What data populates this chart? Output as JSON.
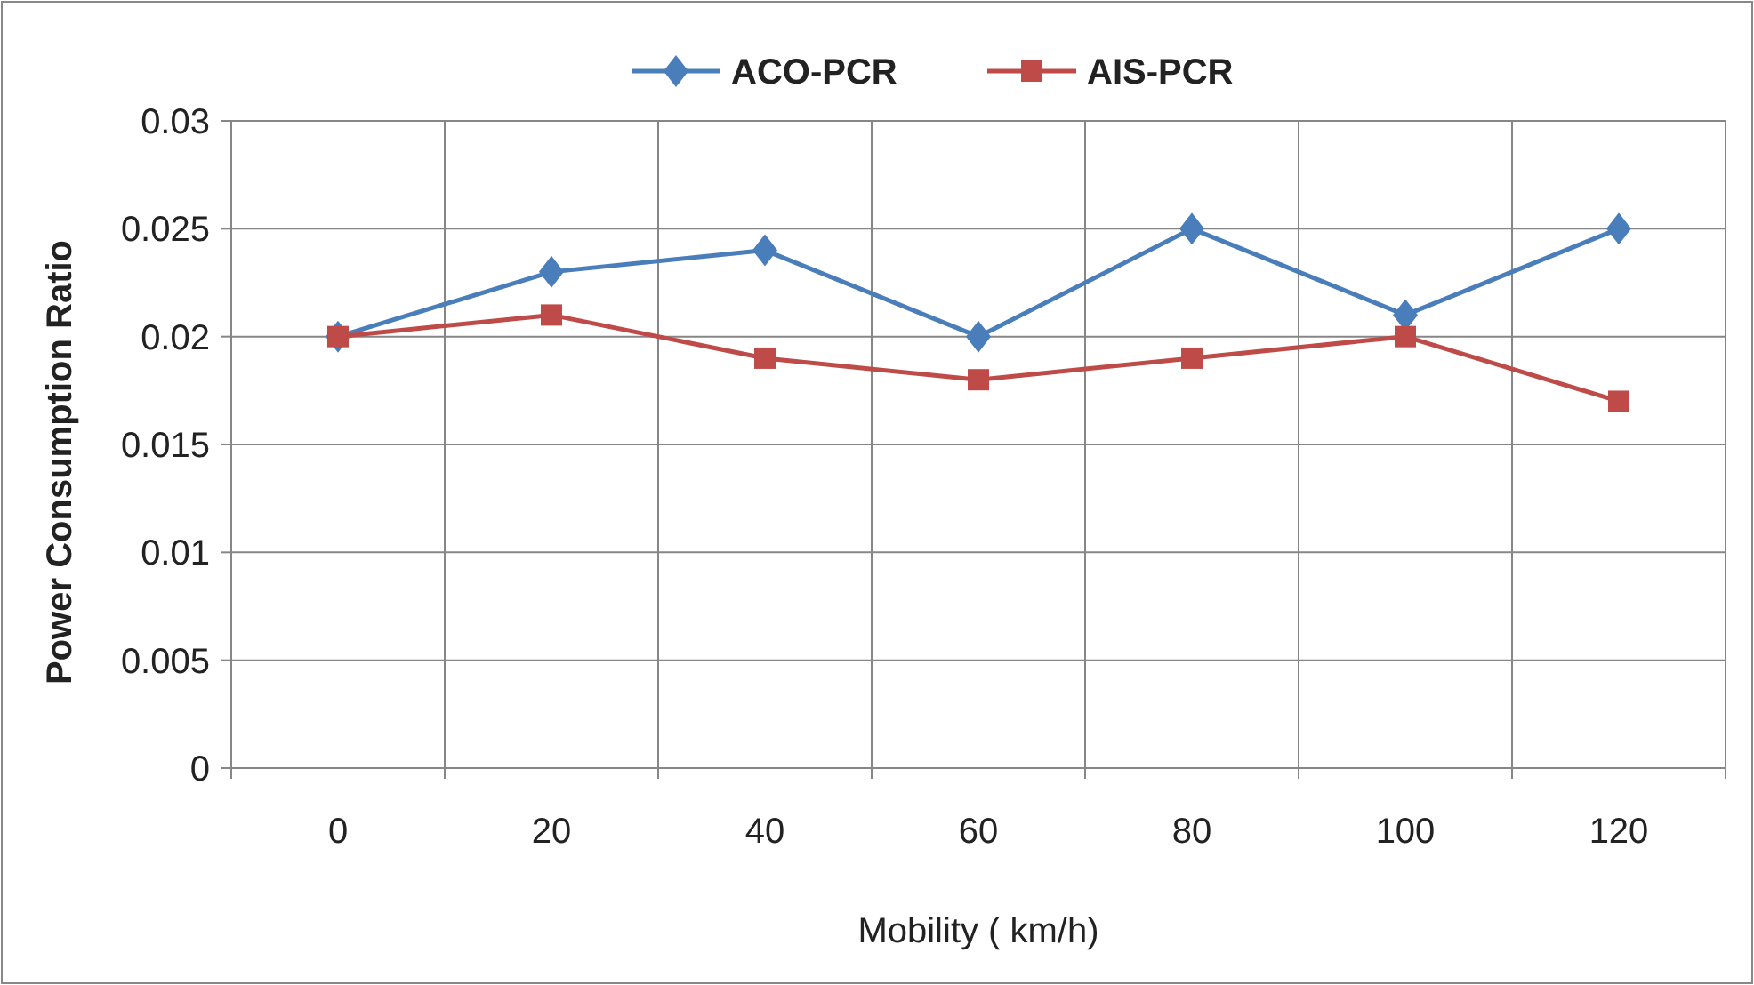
{
  "chart_data": {
    "type": "line",
    "xlabel": "Mobility ( km/h)",
    "ylabel": "Power Consumption Ratio",
    "categories": [
      "0",
      "20",
      "40",
      "60",
      "80",
      "100",
      "120"
    ],
    "series": [
      {
        "name": "ACO-PCR",
        "color": "#4a7ebb",
        "marker": "diamond",
        "values": [
          0.02,
          0.023,
          0.024,
          0.02,
          0.025,
          0.021,
          0.025
        ]
      },
      {
        "name": "AIS-PCR",
        "color": "#be4b48",
        "marker": "square",
        "values": [
          0.02,
          0.021,
          0.019,
          0.018,
          0.019,
          0.02,
          0.017
        ]
      }
    ],
    "ylim": [
      0,
      0.03
    ],
    "yticks": [
      0,
      0.005,
      0.01,
      0.015,
      0.02,
      0.025,
      0.03
    ],
    "grid": true,
    "legend": "top",
    "line_style": "solid"
  }
}
